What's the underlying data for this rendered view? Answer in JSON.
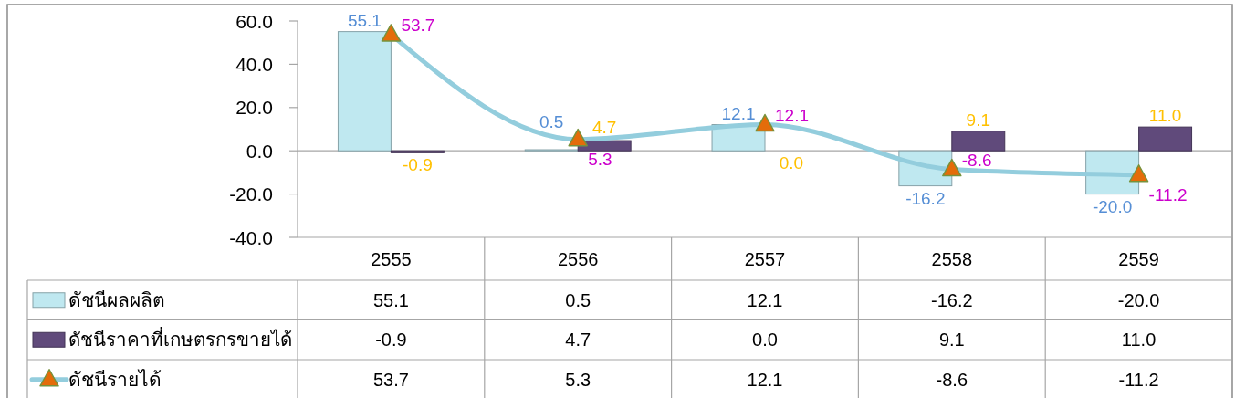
{
  "chart_data": {
    "type": "bar",
    "categories": [
      "2555",
      "2556",
      "2557",
      "2558",
      "2559"
    ],
    "series": [
      {
        "name": "ดัชนีผลผลิต",
        "color": "#bfe8f0",
        "values": [
          55.1,
          0.5,
          12.1,
          -16.2,
          -20.0
        ],
        "value_labels": [
          "55.1",
          "0.5",
          "12.1",
          "-16.2",
          "-20.0"
        ]
      },
      {
        "name": "ดัชนีราคาที่เกษตรกรขายได้",
        "color": "#604a7b",
        "values": [
          -0.9,
          4.7,
          0.0,
          9.1,
          11.0
        ],
        "value_labels": [
          "-0.9",
          "4.7",
          "0.0",
          "9.1",
          "11.0"
        ]
      },
      {
        "name": "ดัชนีรายได้",
        "type": "line",
        "color": "#93cddd",
        "values": [
          53.7,
          5.3,
          12.1,
          -8.6,
          -11.2
        ],
        "value_labels": [
          "53.7",
          "5.3",
          "12.1",
          "-8.6",
          "-11.2"
        ]
      }
    ],
    "ylim": [
      -40,
      60
    ],
    "yticks": [
      {
        "value": -40,
        "label": "-40.0"
      },
      {
        "value": -20,
        "label": "-20.0"
      },
      {
        "value": 0,
        "label": "0.0"
      },
      {
        "value": 20,
        "label": "20.0"
      },
      {
        "value": 40,
        "label": "40.0"
      },
      {
        "value": 60,
        "label": "60.0"
      }
    ],
    "marker": "triangle",
    "legend": "bottom left"
  }
}
